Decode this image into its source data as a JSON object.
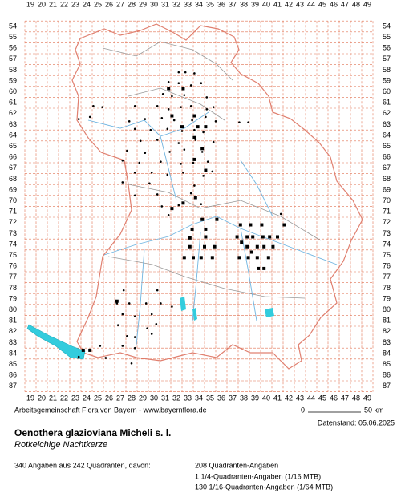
{
  "map": {
    "xticks": [
      19,
      20,
      21,
      22,
      23,
      24,
      25,
      26,
      27,
      28,
      29,
      30,
      31,
      32,
      33,
      34,
      35,
      36,
      37,
      38,
      39,
      40,
      41,
      42,
      43,
      44,
      45,
      46,
      47,
      48,
      49
    ],
    "yticks": [
      54,
      55,
      56,
      57,
      58,
      59,
      60,
      61,
      62,
      63,
      64,
      65,
      66,
      67,
      68,
      69,
      70,
      71,
      72,
      73,
      74,
      75,
      76,
      77,
      78,
      79,
      80,
      81,
      82,
      83,
      84,
      85,
      86,
      87
    ],
    "dot_points": [
      [
        32.2,
        58.2
      ],
      [
        32.8,
        58.2
      ],
      [
        33.6,
        58.3
      ],
      [
        31.3,
        59.1
      ],
      [
        32.2,
        59.2
      ],
      [
        33.3,
        59.4
      ],
      [
        34.2,
        59.2
      ],
      [
        30.8,
        60.2
      ],
      [
        31.6,
        60.4
      ],
      [
        32.7,
        60.3
      ],
      [
        34.7,
        60.5
      ],
      [
        28.3,
        61.3
      ],
      [
        30.3,
        61.3
      ],
      [
        31.3,
        61.6
      ],
      [
        32.4,
        61.4
      ],
      [
        33.3,
        61.3
      ],
      [
        34.7,
        61.6
      ],
      [
        35.3,
        61.4
      ],
      [
        27.8,
        62.7
      ],
      [
        29.2,
        62.5
      ],
      [
        30.7,
        62.4
      ],
      [
        31.8,
        62.6
      ],
      [
        33.4,
        62.6
      ],
      [
        34.6,
        62.3
      ],
      [
        35.5,
        62.7
      ],
      [
        37.6,
        62.8
      ],
      [
        38.4,
        62.8
      ],
      [
        28.3,
        63.4
      ],
      [
        29.7,
        63.5
      ],
      [
        31.2,
        63.4
      ],
      [
        32.5,
        63.6
      ],
      [
        33.6,
        63.5
      ],
      [
        34.4,
        63.7
      ],
      [
        28.8,
        64.5
      ],
      [
        30.3,
        64.4
      ],
      [
        32.2,
        64.7
      ],
      [
        33.7,
        64.4
      ],
      [
        35.3,
        64.6
      ],
      [
        27.6,
        65.4
      ],
      [
        29.2,
        65.6
      ],
      [
        31.4,
        65.5
      ],
      [
        32.7,
        65.3
      ],
      [
        34.3,
        65.5
      ],
      [
        27.2,
        66.3
      ],
      [
        28.7,
        66.5
      ],
      [
        30.6,
        66.4
      ],
      [
        32.4,
        66.6
      ],
      [
        33.5,
        66.5
      ],
      [
        34.8,
        66.4
      ],
      [
        28.3,
        67.4
      ],
      [
        29.8,
        67.4
      ],
      [
        31.2,
        67.6
      ],
      [
        32.6,
        67.4
      ],
      [
        34.4,
        67.7
      ],
      [
        35.2,
        67.3
      ],
      [
        27.2,
        68.3
      ],
      [
        29.6,
        68.4
      ],
      [
        33.6,
        68.6
      ],
      [
        28.3,
        69.5
      ],
      [
        30.3,
        69.4
      ],
      [
        33.3,
        69.3
      ],
      [
        30.7,
        70.5
      ],
      [
        32.2,
        70.4
      ],
      [
        34.2,
        70.3
      ],
      [
        31.3,
        71.3
      ],
      [
        41.3,
        71.2
      ],
      [
        24.3,
        62.3
      ],
      [
        23.3,
        62.5
      ],
      [
        24.6,
        61.3
      ],
      [
        25.4,
        61.4
      ],
      [
        27.3,
        78.2
      ],
      [
        26.7,
        79.4
      ],
      [
        27.8,
        79.4
      ],
      [
        29.3,
        79.4
      ],
      [
        30.6,
        79.4
      ],
      [
        27.2,
        80.4
      ],
      [
        28.3,
        80.6
      ],
      [
        29.8,
        80.4
      ],
      [
        26.8,
        81.4
      ],
      [
        29.4,
        81.7
      ],
      [
        30.2,
        81.3
      ],
      [
        27.6,
        82.4
      ],
      [
        28.3,
        82.5
      ],
      [
        29.8,
        82.2
      ],
      [
        27.2,
        83.3
      ],
      [
        28.3,
        83.5
      ],
      [
        25.2,
        83.3
      ],
      [
        23.3,
        84.3
      ],
      [
        25.7,
        84.4
      ],
      [
        28.0,
        84.9
      ],
      [
        30.3,
        78.2
      ],
      [
        31.6,
        79.7
      ]
    ],
    "square_points": [
      [
        31.3,
        59.7
      ],
      [
        32.6,
        59.7
      ],
      [
        31.6,
        62.2
      ],
      [
        33.6,
        62.2
      ],
      [
        32.5,
        63.2
      ],
      [
        33.9,
        63.2
      ],
      [
        34.6,
        63.2
      ],
      [
        33.6,
        64.2
      ],
      [
        34.3,
        65.2
      ],
      [
        33.6,
        66.2
      ],
      [
        34.6,
        67.2
      ],
      [
        33.7,
        69.7
      ],
      [
        31.6,
        70.7
      ],
      [
        32.6,
        70.2
      ],
      [
        35.6,
        71.7
      ],
      [
        34.3,
        71.7
      ],
      [
        33.4,
        72.6
      ],
      [
        34.6,
        72.6
      ],
      [
        37.7,
        72.2
      ],
      [
        38.6,
        72.2
      ],
      [
        39.6,
        72.2
      ],
      [
        41.6,
        72.2
      ],
      [
        33.2,
        73.4
      ],
      [
        34.6,
        73.3
      ],
      [
        37.4,
        73.3
      ],
      [
        38.3,
        73.3
      ],
      [
        38.8,
        73.3
      ],
      [
        39.7,
        73.3
      ],
      [
        40.3,
        73.3
      ],
      [
        41.0,
        73.3
      ],
      [
        33.2,
        74.2
      ],
      [
        34.5,
        74.2
      ],
      [
        35.4,
        74.2
      ],
      [
        38.3,
        74.2
      ],
      [
        39.2,
        74.2
      ],
      [
        39.8,
        74.2
      ],
      [
        40.6,
        74.2
      ],
      [
        32.7,
        75.2
      ],
      [
        33.5,
        75.2
      ],
      [
        34.2,
        75.2
      ],
      [
        35.2,
        75.2
      ],
      [
        37.6,
        75.2
      ],
      [
        38.4,
        75.2
      ],
      [
        39.2,
        75.2
      ],
      [
        40.2,
        75.2
      ],
      [
        39.3,
        76.2
      ],
      [
        39.8,
        76.2
      ],
      [
        38.7,
        74.7
      ],
      [
        37.8,
        73.8
      ],
      [
        24.3,
        83.7
      ],
      [
        23.7,
        83.7
      ],
      [
        26.7,
        79.2
      ]
    ]
  },
  "footer": {
    "source": "Arbeitsgemeinschaft Flora von Bayern - www.bayernflora.de",
    "scale_start": "0",
    "scale_end": "50 km",
    "date": "Datenstand: 05.06.2025",
    "title": "Oenothera glazioviana Micheli s. l.",
    "subtitle": "Rotkelchige Nachtkerze",
    "summary": "340 Angaben aus 242 Quadranten, davon:",
    "counts": [
      "208 Quadranten-Angaben",
      "1 1/4-Quadranten-Angaben (1/16 MTB)",
      "130 1/16-Quadranten-Angaben (1/64 MTB)"
    ]
  }
}
